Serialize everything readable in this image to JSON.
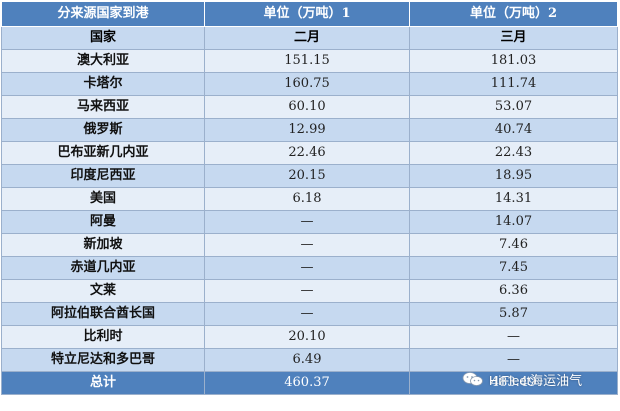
{
  "header": {
    "col1": "分来源国家到港",
    "col2": "单位（万吨）1",
    "col3": "单位（万吨）2"
  },
  "subheader": {
    "col1": "国家",
    "col2": "二月",
    "col3": "三月"
  },
  "rows": [
    {
      "country": "澳大利亚",
      "feb": "151.15",
      "mar": "181.03"
    },
    {
      "country": "卡塔尔",
      "feb": "160.75",
      "mar": "111.74"
    },
    {
      "country": "马来西亚",
      "feb": "60.10",
      "mar": "53.07"
    },
    {
      "country": "俄罗斯",
      "feb": "12.99",
      "mar": "40.74"
    },
    {
      "country": "巴布亚新几内亚",
      "feb": "22.46",
      "mar": "22.43"
    },
    {
      "country": "印度尼西亚",
      "feb": "20.15",
      "mar": "18.95"
    },
    {
      "country": "美国",
      "feb": "6.18",
      "mar": "14.31"
    },
    {
      "country": "阿曼",
      "feb": "—",
      "mar": "14.07"
    },
    {
      "country": "新加坡",
      "feb": "—",
      "mar": "7.46"
    },
    {
      "country": "赤道几内亚",
      "feb": "—",
      "mar": "7.45"
    },
    {
      "country": "文莱",
      "feb": "—",
      "mar": "6.36"
    },
    {
      "country": "阿拉伯联合酋长国",
      "feb": "—",
      "mar": "5.87"
    },
    {
      "country": "比利时",
      "feb": "20.10",
      "mar": "—"
    },
    {
      "country": "特立尼达和多巴哥",
      "feb": "6.49",
      "mar": "—"
    }
  ],
  "total": {
    "label": "总计",
    "feb": "460.37",
    "mar": "483.49"
  },
  "watermark": {
    "text": "HiFleet海运油气",
    "icon": "wechat-icon"
  },
  "colors": {
    "header": "#4f81bd",
    "band": "#c6d9f0",
    "plain": "#e6eef8",
    "border": "#9bb0cc"
  }
}
